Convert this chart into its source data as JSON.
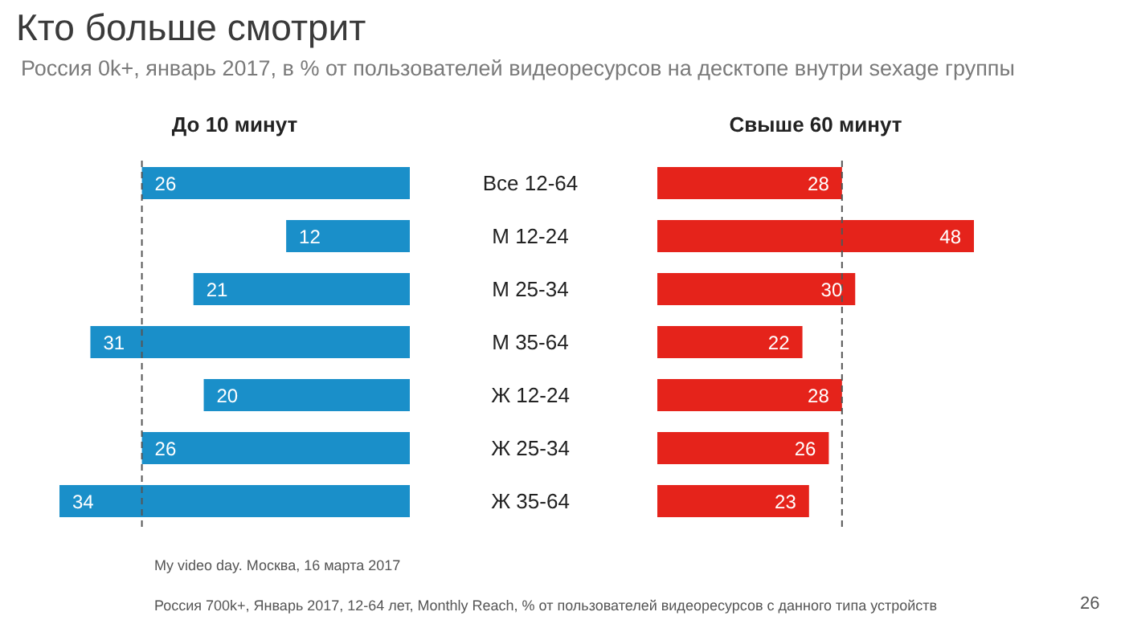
{
  "chart_data": [
    {
      "type": "other",
      "title": "Кто больше смотрит",
      "subtitle": "Россия 0k+, январь 2017, в % от пользователей видеоресурсов на десктопе внутри sexage группы"
    },
    {
      "type": "bar",
      "orientation": "horizontal",
      "title": "До 10 минут",
      "categories": [
        "Все 12-64",
        "М 12-24",
        "М 25-34",
        "М 35-64",
        "Ж 12-24",
        "Ж 25-34",
        "Ж 35-64"
      ],
      "values": [
        26,
        12,
        21,
        31,
        20,
        26,
        34
      ],
      "color": "#1a8fc9",
      "data_labels": true,
      "tick_labels": "y",
      "ref_lines": [
        {
          "axis": "x",
          "value": 26,
          "color": "#555555",
          "line_style": "dashed"
        }
      ]
    },
    {
      "type": "bar",
      "orientation": "horizontal",
      "title": "Свыше 60 минут",
      "values": [
        28,
        48,
        30,
        22,
        28,
        26,
        23
      ],
      "color": "#e5231b",
      "data_labels": true,
      "tick_labels": false,
      "ref_lines": [
        {
          "axis": "x",
          "value": 28,
          "color": "#555555",
          "line_style": "dashed"
        }
      ]
    },
    {
      "type": "other",
      "annotations": [
        "My video day. Москва, 16 марта 2017",
        "Россия 700k+, Январь 2017, 12-64 лет, Monthly Reach, % от пользователей видеоресурсов с данного типа устройств",
        "26"
      ]
    }
  ]
}
